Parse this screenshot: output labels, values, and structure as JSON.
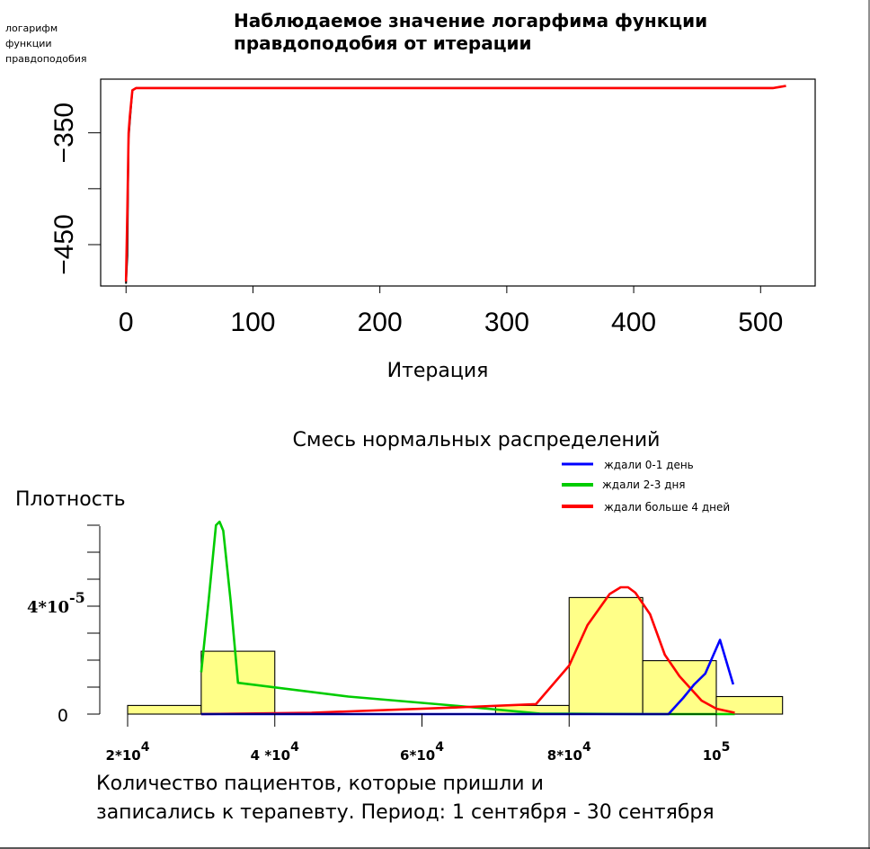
{
  "chart_data": [
    {
      "type": "line",
      "title_line1": "Наблюдаемое значение логарфима функции",
      "title_line2": "правдоподобия от итерации",
      "ylabel_lines": [
        "логарифм",
        "функции",
        "правдоподобия"
      ],
      "xlabel": "Итерация",
      "x_ticks": [
        0,
        100,
        200,
        300,
        400,
        500
      ],
      "x_tick_labels": [
        "0",
        "100",
        "200",
        "300",
        "400",
        "500"
      ],
      "y_ticks": [
        -350,
        -450
      ],
      "y_tick_labels": [
        "−350",
        "−450"
      ],
      "xlim": [
        -20,
        543
      ],
      "ylim": [
        -487,
        -302
      ],
      "series": [
        {
          "color": "#000000",
          "x": [
            0,
            1,
            2,
            3,
            5,
            8,
            20,
            100,
            300,
            480,
            505,
            510,
            515,
            520
          ],
          "y": [
            -485,
            -460,
            -355,
            -340,
            -312,
            -310,
            -310,
            -310,
            -310,
            -310,
            -310,
            -310,
            -309,
            -308
          ]
        },
        {
          "color": "#ff0000",
          "x": [
            0,
            1,
            2,
            3,
            5,
            8,
            20,
            100,
            310,
            480,
            505,
            510,
            515,
            520
          ],
          "y": [
            -483,
            -420,
            -350,
            -335,
            -312,
            -310,
            -310,
            -310,
            -310,
            -310,
            -310,
            -310,
            -309,
            -308
          ]
        }
      ]
    },
    {
      "type": "histogram",
      "title": "Смесь нормальных распределений",
      "ylabel": "Плотность",
      "xlabel_line1": "Количество пациентов, которые пришли и",
      "xlabel_line2": "записались к терапевту. Период: 1 сентября - 30 сентября",
      "xlim": [
        20000,
        110000
      ],
      "ylim": [
        0,
        7e-05
      ],
      "x_tick_values": [
        20000,
        40000,
        60000,
        80000,
        100000
      ],
      "x_tick_bases": [
        "2*10",
        "4 *10",
        "6*10",
        "8*10",
        "10"
      ],
      "x_tick_exps": [
        "4",
        "4",
        "4",
        "4",
        "5"
      ],
      "y_tick_label_zero": "0",
      "y_tick_label_base": "4*10",
      "y_tick_label_exp": "-5",
      "y_tick_label_value": 4e-05,
      "bars": [
        {
          "x0": 20000,
          "x1": 30000,
          "density": 3.2e-06
        },
        {
          "x0": 30000,
          "x1": 40000,
          "density": 2.33e-05
        },
        {
          "x0": 70000,
          "x1": 80000,
          "density": 3.2e-06
        },
        {
          "x0": 80000,
          "x1": 90000,
          "density": 4.32e-05
        },
        {
          "x0": 90000,
          "x1": 100000,
          "density": 1.98e-05
        },
        {
          "x0": 100000,
          "x1": 109000,
          "density": 6.5e-06
        }
      ],
      "bar_color": "#ffff88",
      "legend": [
        {
          "label": "ждали 0-1 день",
          "color": "#0000ff"
        },
        {
          "label": "ждали 2-3 дня",
          "color": "#00cc00"
        },
        {
          "label": "ждали больше 4 дней",
          "color": "#ff0000"
        }
      ],
      "curves": [
        {
          "color": "#00cc00",
          "x": [
            30000,
            31000,
            32000,
            32500,
            33000,
            34000,
            35000,
            50000,
            65000,
            76000,
            90000,
            100000,
            102500
          ],
          "y": [
            1.55e-05,
            4.2e-05,
            7e-05,
            7.13e-05,
            6.8e-05,
            4.2e-05,
            1.16e-05,
            6.5e-06,
            3e-06,
            2e-07,
            0.0,
            0.0,
            0.0
          ]
        },
        {
          "color": "#ff0000",
          "x": [
            30000,
            45000,
            65000,
            75500,
            80000,
            82500,
            85500,
            87000,
            88000,
            89000,
            91000,
            93000,
            95000,
            98000,
            100000,
            102500
          ],
          "y": [
            0.0,
            5e-07,
            2.5e-06,
            3.7e-06,
            1.8e-05,
            3.3e-05,
            4.45e-05,
            4.7e-05,
            4.7e-05,
            4.5e-05,
            3.7e-05,
            2.2e-05,
            1.4e-05,
            5e-06,
            2e-06,
            5e-07
          ]
        },
        {
          "color": "#0000ff",
          "x": [
            30000,
            60000,
            90000,
            93500,
            95500,
            97000,
            98500,
            100500,
            102300
          ],
          "y": [
            0.0,
            0.0,
            0.0,
            0.0,
            6e-06,
            1.1e-05,
            1.5e-05,
            2.75e-05,
            1.1e-05
          ]
        }
      ]
    }
  ]
}
